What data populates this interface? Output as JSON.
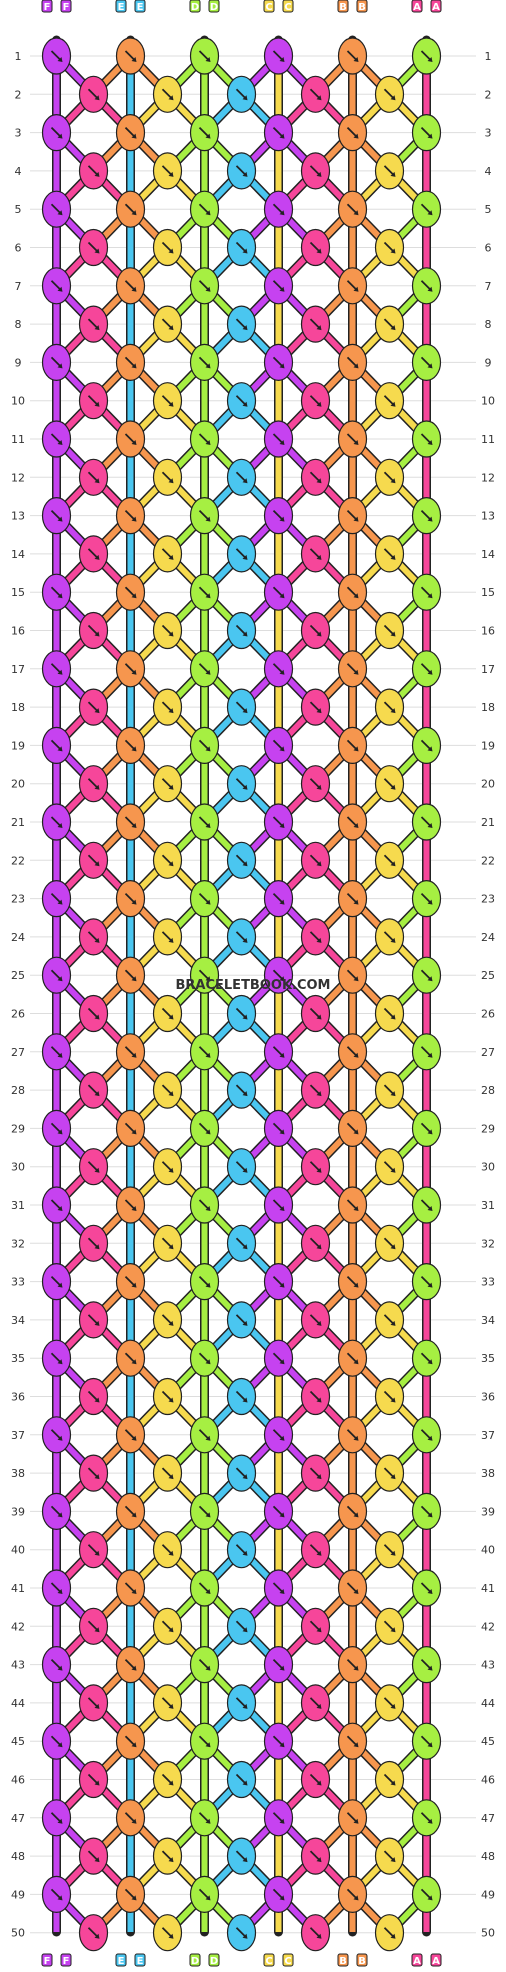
{
  "watermark": "BRACELETBOOK.COM",
  "colors": {
    "F": "#c642f0",
    "E": "#4ac6f0",
    "D": "#a6ef42",
    "C": "#f6da4e",
    "B": "#f6964e",
    "A": "#f6469a"
  },
  "strings": [
    "F",
    "F",
    "E",
    "E",
    "D",
    "D",
    "C",
    "C",
    "B",
    "B",
    "A",
    "A"
  ],
  "rows": [
    "1",
    "2",
    "3",
    "4",
    "5",
    "6",
    "7",
    "8",
    "9",
    "10",
    "11",
    "12",
    "13",
    "14",
    "15",
    "16",
    "17",
    "18",
    "19",
    "20",
    "21",
    "22",
    "23",
    "24",
    "25",
    "26",
    "27",
    "28",
    "29",
    "30",
    "31",
    "32",
    "33",
    "34",
    "35",
    "36",
    "37",
    "38",
    "39",
    "40",
    "41",
    "42",
    "43",
    "44",
    "45",
    "46",
    "47",
    "48",
    "49",
    "50"
  ]
}
